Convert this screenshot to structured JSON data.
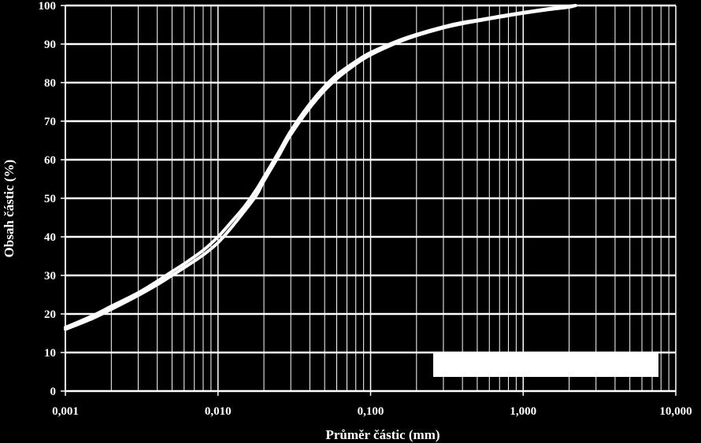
{
  "chart_data": {
    "type": "line",
    "title": "",
    "xlabel": "Průměr částic (mm)",
    "ylabel": "Obsah částic (%)",
    "x_scale": "log",
    "xlim": [
      0.001,
      10
    ],
    "ylim": [
      0,
      100
    ],
    "x_ticks": [
      0.001,
      0.01,
      0.1,
      1,
      10
    ],
    "x_tick_labels": [
      "0,001",
      "0,010",
      "0,100",
      "1,000",
      "10,000"
    ],
    "y_ticks": [
      0,
      10,
      20,
      30,
      40,
      50,
      60,
      70,
      80,
      90,
      100
    ],
    "y_tick_labels": [
      "0",
      "10",
      "20",
      "30",
      "40",
      "50",
      "60",
      "70",
      "80",
      "90",
      "100"
    ],
    "grid": true,
    "background_color": "#000000",
    "line_color": "#ffffff",
    "series": [
      {
        "x": [
          0.001,
          0.0015,
          0.002,
          0.003,
          0.004,
          0.005,
          0.006,
          0.008,
          0.01,
          0.012,
          0.015,
          0.018,
          0.02,
          0.025,
          0.03,
          0.04,
          0.05,
          0.06,
          0.08,
          0.1,
          0.15,
          0.2,
          0.3,
          0.4,
          0.5,
          0.7,
          1,
          1.5,
          2,
          2.2
        ],
        "values": [
          16.5,
          19.5,
          22,
          25.5,
          28.5,
          31,
          33,
          36.5,
          40,
          43.5,
          48,
          52.5,
          55.5,
          62,
          67.5,
          74.5,
          79,
          82,
          85.5,
          87.8,
          90.8,
          92.5,
          94.5,
          95.6,
          96.2,
          97.2,
          98.2,
          99.2,
          99.8,
          100
        ]
      },
      {
        "x": [
          0.001,
          0.0015,
          0.002,
          0.003,
          0.004,
          0.005,
          0.006,
          0.008,
          0.01,
          0.012,
          0.015,
          0.018,
          0.02,
          0.025,
          0.03,
          0.04,
          0.05,
          0.06,
          0.08,
          0.1,
          0.15,
          0.2,
          0.3,
          0.4,
          0.5,
          0.7,
          1,
          1.5,
          2,
          2.2
        ],
        "values": [
          16,
          18.8,
          21.2,
          24.8,
          27.6,
          30,
          32,
          35.3,
          38.5,
          42,
          46.8,
          51,
          54.5,
          61,
          66.5,
          73.5,
          78,
          81,
          84.8,
          87.2,
          90.4,
          92.2,
          94.2,
          95.3,
          96,
          97,
          98,
          99,
          99.6,
          100
        ]
      }
    ],
    "legend_box": {
      "position": "bottom-right",
      "content": ""
    }
  }
}
